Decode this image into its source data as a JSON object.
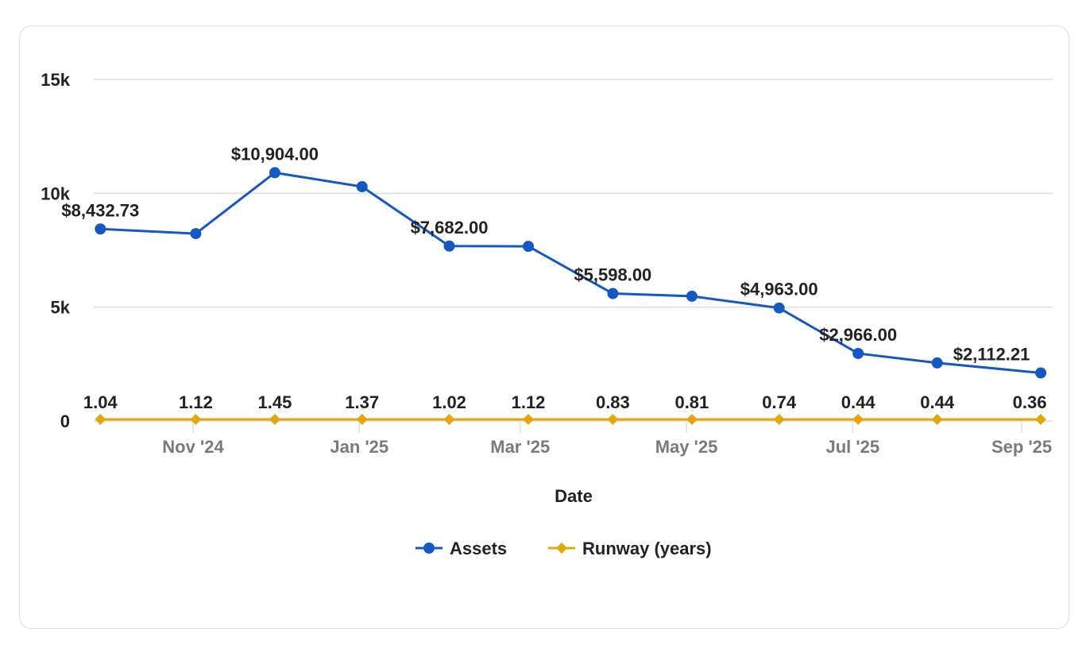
{
  "chart_data": {
    "type": "line",
    "xlabel": "Date",
    "ylabel": "",
    "ylim": [
      0,
      15000
    ],
    "y_ticks": [
      "0",
      "5k",
      "10k",
      "15k"
    ],
    "y_tick_values": [
      0,
      5000,
      10000,
      15000
    ],
    "x_ticks": [
      "Nov '24",
      "Jan '25",
      "Mar '25",
      "May '25",
      "Jul '25",
      "Sep '25"
    ],
    "x_tick_dates": [
      "2024-11-01",
      "2025-01-01",
      "2025-03-01",
      "2025-05-01",
      "2025-07-01",
      "2025-09-01"
    ],
    "grid": true,
    "legend_position": "bottom",
    "x": [
      "2024-09-28",
      "2024-11-02",
      "2024-12-01",
      "2025-01-02",
      "2025-02-03",
      "2025-03-04",
      "2025-04-04",
      "2025-05-03",
      "2025-06-04",
      "2025-07-03",
      "2025-08-01",
      "2025-09-08"
    ],
    "series": [
      {
        "name": "Assets",
        "color": "#1458c4",
        "marker": "circle",
        "values": [
          8432.73,
          8230,
          10904,
          10290,
          7682,
          7670,
          5598,
          5480,
          4963,
          2966,
          2550,
          2112.21
        ],
        "data_labels": [
          "$8,432.73",
          "",
          "$10,904.00",
          "",
          "$7,682.00",
          "",
          "$5,598.00",
          "",
          "$4,963.00",
          "$2,966.00",
          "",
          "$2,112.21"
        ]
      },
      {
        "name": "Runway (years)",
        "color": "#e3a70a",
        "marker": "diamond",
        "values": [
          1.04,
          1.12,
          1.45,
          1.37,
          1.02,
          1.12,
          0.83,
          0.81,
          0.74,
          0.44,
          0.44,
          0.36
        ],
        "data_labels": [
          "1.04",
          "1.12",
          "1.45",
          "1.37",
          "1.02",
          "1.12",
          "0.83",
          "0.81",
          "0.74",
          "0.44",
          "0.44",
          "0.36"
        ]
      }
    ]
  }
}
